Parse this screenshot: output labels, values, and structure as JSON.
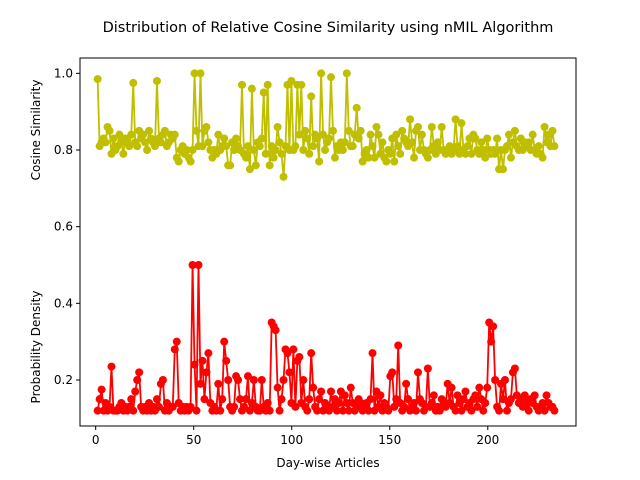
{
  "chart_data": {
    "type": "line",
    "title": "Distribution of Relative Cosine Similarity using nMIL Algorithm",
    "xlabel": "Day-wise Articles",
    "ylabel_upper": "Cosine Similarity",
    "ylabel_lower": "Probability Density",
    "xlim": [
      -8,
      245
    ],
    "ylim": [
      0.08,
      1.04
    ],
    "xticks": [
      0,
      50,
      100,
      150,
      200
    ],
    "xtick_labels": [
      "0",
      "50",
      "100",
      "150",
      "200"
    ],
    "yticks": [
      0.2,
      0.4,
      0.6,
      0.8,
      1.0
    ],
    "ytick_labels": [
      "0.2",
      "0.4",
      "0.6",
      "0.8",
      "1.0"
    ],
    "grid": false,
    "series": [
      {
        "color": "#bfbf00",
        "marker": "circle",
        "values": [
          0.985,
          0.81,
          0.82,
          0.83,
          0.82,
          0.86,
          0.85,
          0.79,
          0.83,
          0.8,
          0.81,
          0.84,
          0.82,
          0.79,
          0.83,
          0.82,
          0.81,
          0.84,
          0.975,
          0.82,
          0.81,
          0.85,
          0.83,
          0.84,
          0.82,
          0.8,
          0.85,
          0.83,
          0.82,
          0.81,
          0.98,
          0.83,
          0.82,
          0.84,
          0.85,
          0.81,
          0.82,
          0.84,
          0.83,
          0.84,
          0.78,
          0.77,
          0.8,
          0.81,
          0.79,
          0.8,
          0.78,
          0.77,
          0.8,
          1.0,
          0.85,
          0.81,
          1.0,
          0.81,
          0.85,
          0.86,
          0.82,
          0.8,
          0.78,
          0.8,
          0.79,
          0.84,
          0.8,
          0.81,
          0.83,
          0.81,
          0.76,
          0.76,
          0.82,
          0.8,
          0.83,
          0.81,
          0.8,
          0.97,
          0.79,
          0.78,
          0.81,
          0.75,
          0.96,
          0.8,
          0.76,
          0.82,
          0.81,
          0.83,
          0.95,
          0.79,
          0.97,
          0.76,
          0.81,
          0.78,
          0.8,
          0.86,
          0.82,
          0.79,
          0.73,
          0.81,
          0.97,
          0.8,
          0.98,
          0.8,
          0.81,
          0.97,
          0.84,
          0.97,
          0.8,
          0.85,
          0.83,
          0.79,
          0.94,
          0.81,
          0.84,
          0.83,
          0.77,
          1.0,
          0.84,
          0.8,
          0.82,
          0.83,
          0.99,
          0.85,
          0.78,
          0.81,
          0.8,
          0.82,
          0.8,
          0.82,
          1.0,
          0.85,
          0.81,
          0.81,
          0.84,
          0.91,
          0.83,
          0.85,
          0.77,
          0.79,
          0.8,
          0.78,
          0.84,
          0.81,
          0.78,
          0.86,
          0.84,
          0.79,
          0.82,
          0.78,
          0.77,
          0.8,
          0.79,
          0.83,
          0.77,
          0.84,
          0.81,
          0.79,
          0.85,
          0.83,
          0.82,
          0.81,
          0.88,
          0.82,
          0.78,
          0.85,
          0.86,
          0.8,
          0.84,
          0.8,
          0.79,
          0.78,
          0.8,
          0.86,
          0.81,
          0.79,
          0.82,
          0.8,
          0.86,
          0.8,
          0.79,
          0.8,
          0.81,
          0.79,
          0.8,
          0.88,
          0.81,
          0.79,
          0.87,
          0.8,
          0.79,
          0.81,
          0.83,
          0.79,
          0.84,
          0.83,
          0.8,
          0.79,
          0.82,
          0.8,
          0.78,
          0.83,
          0.8,
          0.79,
          0.8,
          0.79,
          0.83,
          0.75,
          0.8,
          0.75,
          0.8,
          0.81,
          0.84,
          0.78,
          0.82,
          0.85,
          0.81,
          0.8,
          0.83,
          0.8,
          0.82,
          0.81,
          0.82,
          0.8,
          0.84,
          0.8,
          0.79,
          0.81,
          0.79,
          0.78,
          0.86,
          0.82,
          0.84,
          0.81,
          0.85,
          0.81
        ],
        "x_start": 1,
        "x_end": 234
      },
      {
        "color": "#ff0000",
        "marker": "circle",
        "values": [
          0.12,
          0.15,
          0.175,
          0.12,
          0.14,
          0.12,
          0.13,
          0.235,
          0.12,
          0.12,
          0.12,
          0.13,
          0.14,
          0.12,
          0.13,
          0.12,
          0.13,
          0.15,
          0.12,
          0.17,
          0.2,
          0.22,
          0.13,
          0.12,
          0.13,
          0.12,
          0.14,
          0.12,
          0.13,
          0.12,
          0.15,
          0.13,
          0.19,
          0.2,
          0.12,
          0.14,
          0.12,
          0.13,
          0.13,
          0.28,
          0.3,
          0.14,
          0.12,
          0.13,
          0.12,
          0.13,
          0.12,
          0.13,
          0.5,
          0.24,
          0.12,
          0.5,
          0.19,
          0.25,
          0.15,
          0.22,
          0.27,
          0.14,
          0.12,
          0.13,
          0.12,
          0.19,
          0.12,
          0.15,
          0.3,
          0.25,
          0.2,
          0.13,
          0.12,
          0.13,
          0.21,
          0.2,
          0.15,
          0.12,
          0.13,
          0.15,
          0.21,
          0.12,
          0.14,
          0.2,
          0.13,
          0.12,
          0.12,
          0.2,
          0.13,
          0.12,
          0.14,
          0.12,
          0.35,
          0.34,
          0.33,
          0.18,
          0.12,
          0.15,
          0.2,
          0.28,
          0.27,
          0.22,
          0.14,
          0.28,
          0.13,
          0.25,
          0.26,
          0.14,
          0.2,
          0.13,
          0.12,
          0.15,
          0.27,
          0.18,
          0.13,
          0.12,
          0.15,
          0.17,
          0.12,
          0.14,
          0.13,
          0.12,
          0.17,
          0.13,
          0.15,
          0.12,
          0.14,
          0.17,
          0.12,
          0.16,
          0.14,
          0.12,
          0.18,
          0.14,
          0.12,
          0.13,
          0.15,
          0.14,
          0.12,
          0.13,
          0.14,
          0.12,
          0.15,
          0.27,
          0.12,
          0.17,
          0.13,
          0.16,
          0.12,
          0.14,
          0.13,
          0.12,
          0.21,
          0.22,
          0.13,
          0.15,
          0.29,
          0.14,
          0.12,
          0.13,
          0.19,
          0.15,
          0.12,
          0.13,
          0.14,
          0.12,
          0.22,
          0.15,
          0.14,
          0.12,
          0.13,
          0.23,
          0.13,
          0.14,
          0.16,
          0.12,
          0.13,
          0.12,
          0.15,
          0.14,
          0.13,
          0.19,
          0.14,
          0.18,
          0.13,
          0.12,
          0.16,
          0.14,
          0.12,
          0.15,
          0.17,
          0.13,
          0.14,
          0.12,
          0.15,
          0.16,
          0.13,
          0.18,
          0.15,
          0.12,
          0.14,
          0.18,
          0.35,
          0.3,
          0.34,
          0.2,
          0.13,
          0.12,
          0.19,
          0.15,
          0.2,
          0.12,
          0.14,
          0.15,
          0.22,
          0.23,
          0.16,
          0.14,
          0.15,
          0.13,
          0.16,
          0.14,
          0.12,
          0.15,
          0.14,
          0.16,
          0.13,
          0.12,
          0.13,
          0.14,
          0.12,
          0.16,
          0.14,
          0.13,
          0.13,
          0.12
        ],
        "x_start": 1,
        "x_end": 234
      }
    ]
  }
}
